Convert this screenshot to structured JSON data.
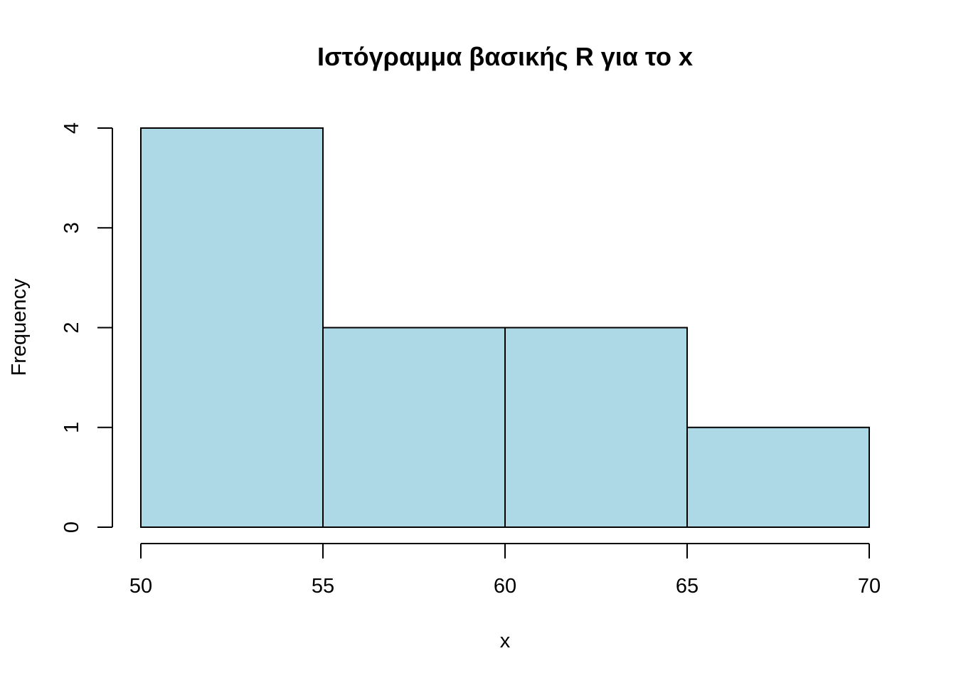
{
  "chart_data": {
    "type": "bar",
    "title": "Ιστόγραμμα βασικής R για το x",
    "xlabel": "x",
    "ylabel": "Frequency",
    "bins": [
      {
        "from": 50,
        "to": 55,
        "count": 4
      },
      {
        "from": 55,
        "to": 60,
        "count": 2
      },
      {
        "from": 60,
        "to": 65,
        "count": 2
      },
      {
        "from": 65,
        "to": 70,
        "count": 1
      }
    ],
    "x_ticks": [
      "50",
      "55",
      "60",
      "65",
      "70"
    ],
    "y_ticks": [
      "0",
      "1",
      "2",
      "3",
      "4"
    ],
    "xlim": [
      50,
      70
    ],
    "ylim": [
      0,
      4
    ],
    "bar_fill": "#add8e6",
    "bar_stroke": "#000000",
    "grid": false,
    "legend": "none"
  }
}
